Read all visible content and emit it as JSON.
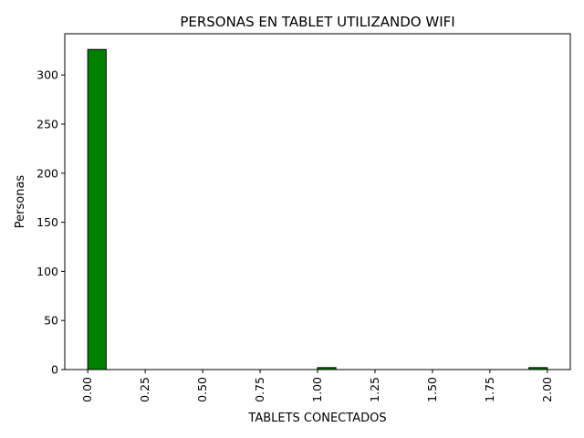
{
  "chart_data": {
    "type": "bar",
    "title": "PERSONAS EN TABLET UTILIZANDO WIFI",
    "xlabel": "TABLETS CONECTADOS",
    "ylabel": "Personas",
    "xlim": [
      -0.1,
      2.1
    ],
    "ylim": [
      0,
      342
    ],
    "xticks": [
      "0.00",
      "0.25",
      "0.50",
      "0.75",
      "1.00",
      "1.25",
      "1.50",
      "1.75",
      "2.00"
    ],
    "yticks": [
      "0",
      "50",
      "100",
      "150",
      "200",
      "250",
      "300"
    ],
    "bin_width": 0.08,
    "bins": [
      {
        "x0": 0.0,
        "value": 326
      },
      {
        "x0": 0.08,
        "value": 0
      },
      {
        "x0": 0.16,
        "value": 0
      },
      {
        "x0": 0.24,
        "value": 0
      },
      {
        "x0": 0.32,
        "value": 0
      },
      {
        "x0": 0.4,
        "value": 0
      },
      {
        "x0": 0.48,
        "value": 0
      },
      {
        "x0": 0.56,
        "value": 0
      },
      {
        "x0": 0.64,
        "value": 0
      },
      {
        "x0": 0.72,
        "value": 0
      },
      {
        "x0": 0.8,
        "value": 0
      },
      {
        "x0": 0.88,
        "value": 0
      },
      {
        "x0": 1.0,
        "value": 2
      },
      {
        "x0": 1.08,
        "value": 0
      },
      {
        "x0": 1.16,
        "value": 0
      },
      {
        "x0": 1.24,
        "value": 0
      },
      {
        "x0": 1.32,
        "value": 0
      },
      {
        "x0": 1.4,
        "value": 0
      },
      {
        "x0": 1.48,
        "value": 0
      },
      {
        "x0": 1.56,
        "value": 0
      },
      {
        "x0": 1.64,
        "value": 0
      },
      {
        "x0": 1.72,
        "value": 0
      },
      {
        "x0": 1.8,
        "value": 0
      },
      {
        "x0": 1.92,
        "value": 2
      }
    ],
    "bar_color": "#008000",
    "edge_color": "#000000",
    "grid": false,
    "legend": "none"
  }
}
